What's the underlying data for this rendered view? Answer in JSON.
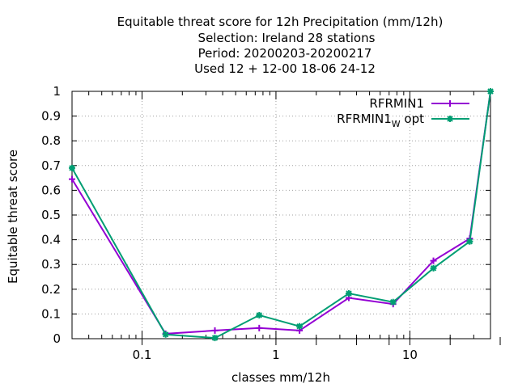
{
  "chart_data": {
    "type": "line",
    "title_lines": [
      "Equitable threat score  for 12h Precipitation (mm/12h)",
      "Selection: Ireland      28 stations",
      "Period: 20200203-20200217",
      "Used  12 + 12-00 18-06 24-12"
    ],
    "xlabel": "classes mm/12h",
    "ylabel": "Equitable threat score",
    "x_scale": "log",
    "xlim": [
      0.03,
      40
    ],
    "ylim": [
      0,
      1
    ],
    "x_ticks": [
      {
        "value": 0.1,
        "label": "0.1"
      },
      {
        "value": 1,
        "label": "1"
      },
      {
        "value": 10,
        "label": "10"
      }
    ],
    "y_ticks": [
      {
        "value": 0,
        "label": "0"
      },
      {
        "value": 0.1,
        "label": "0.1"
      },
      {
        "value": 0.2,
        "label": "0.2"
      },
      {
        "value": 0.3,
        "label": "0.3"
      },
      {
        "value": 0.4,
        "label": "0.4"
      },
      {
        "value": 0.5,
        "label": "0.5"
      },
      {
        "value": 0.6,
        "label": "0.6"
      },
      {
        "value": 0.7,
        "label": "0.7"
      },
      {
        "value": 0.8,
        "label": "0.8"
      },
      {
        "value": 0.9,
        "label": "0.9"
      },
      {
        "value": 1,
        "label": "1"
      }
    ],
    "grid": true,
    "legend_position": "top-right",
    "series": [
      {
        "name": "RFRMIN1",
        "color": "#9400d3",
        "marker": "plus",
        "x": [
          0.03,
          0.15,
          0.35,
          0.75,
          1.5,
          3.5,
          7.5,
          15,
          28,
          40
        ],
        "y": [
          0.645,
          0.02,
          0.033,
          0.043,
          0.033,
          0.165,
          0.14,
          0.315,
          0.405,
          1.0
        ]
      },
      {
        "name_main": "RFRMIN1",
        "name_sub": "W",
        "name_suffix": " opt",
        "color": "#009e73",
        "marker": "star",
        "x": [
          0.03,
          0.15,
          0.35,
          0.75,
          1.5,
          3.5,
          7.5,
          15,
          28,
          40
        ],
        "y": [
          0.69,
          0.017,
          0.003,
          0.095,
          0.05,
          0.183,
          0.148,
          0.285,
          0.393,
          1.0
        ]
      }
    ]
  }
}
